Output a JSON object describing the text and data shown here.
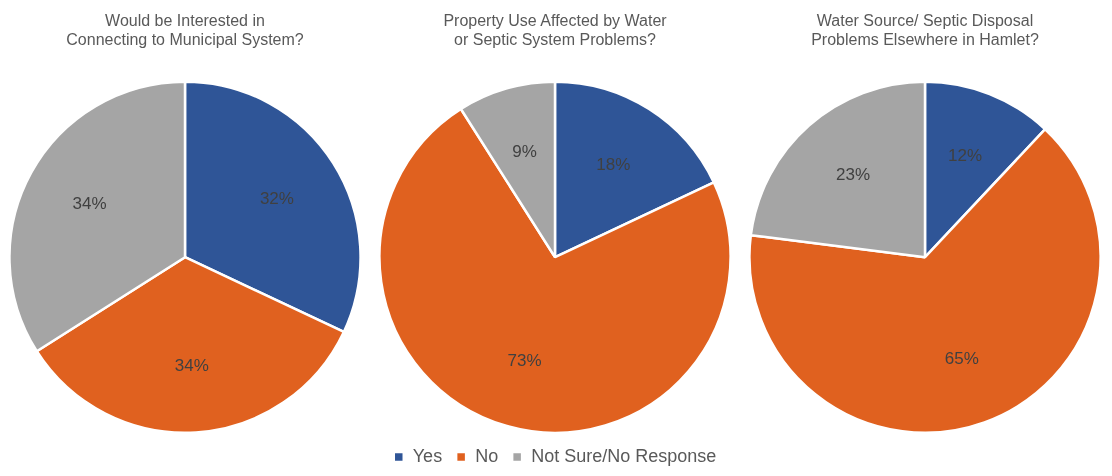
{
  "chart_data": [
    {
      "type": "pie",
      "title": "Would be Interested in\nConnecting to Municipal System?",
      "categories": [
        null,
        null,
        null
      ],
      "values": [
        32,
        34,
        34
      ],
      "colors": [
        "#2f5597",
        "#e0611f",
        "#a5a5a5"
      ],
      "value_labels": [
        "32%",
        "34%",
        "34%"
      ]
    },
    {
      "type": "pie",
      "title": "Property Use Affected by Water\nor Septic System Problems?",
      "categories": [
        "Yes",
        "No",
        "Not Sure/No Response"
      ],
      "values": [
        18,
        73,
        9
      ],
      "colors": [
        "#2f5597",
        "#e0611f",
        "#a5a5a5"
      ],
      "value_labels": [
        "18%",
        "73%",
        "9%"
      ],
      "legend": "bottom"
    },
    {
      "type": "pie",
      "title": "Water Source/ Septic Disposal\nProblems Elsewhere in Hamlet?",
      "categories": [
        null,
        null,
        null
      ],
      "values": [
        12,
        65,
        23
      ],
      "colors": [
        "#2f5597",
        "#e0611f",
        "#a5a5a5"
      ],
      "value_labels": [
        "12%",
        "65%",
        "23%"
      ]
    }
  ]
}
